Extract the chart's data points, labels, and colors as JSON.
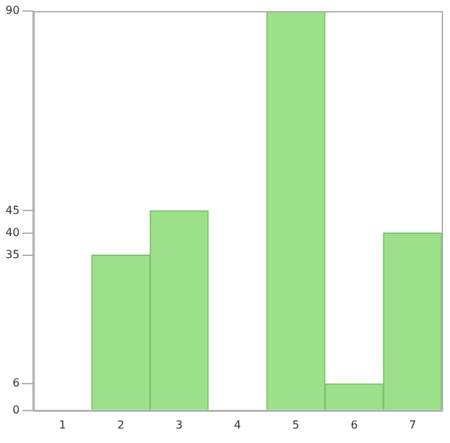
{
  "chart_data": {
    "type": "bar",
    "categories": [
      "1",
      "2",
      "3",
      "4",
      "5",
      "6",
      "7"
    ],
    "values": [
      0,
      35,
      45,
      0,
      90,
      6,
      40
    ],
    "color": "#9de08a",
    "ylim": [
      0,
      90
    ],
    "yticks": [
      0,
      6,
      35,
      40,
      45,
      90
    ],
    "grid": false,
    "legend": false
  }
}
